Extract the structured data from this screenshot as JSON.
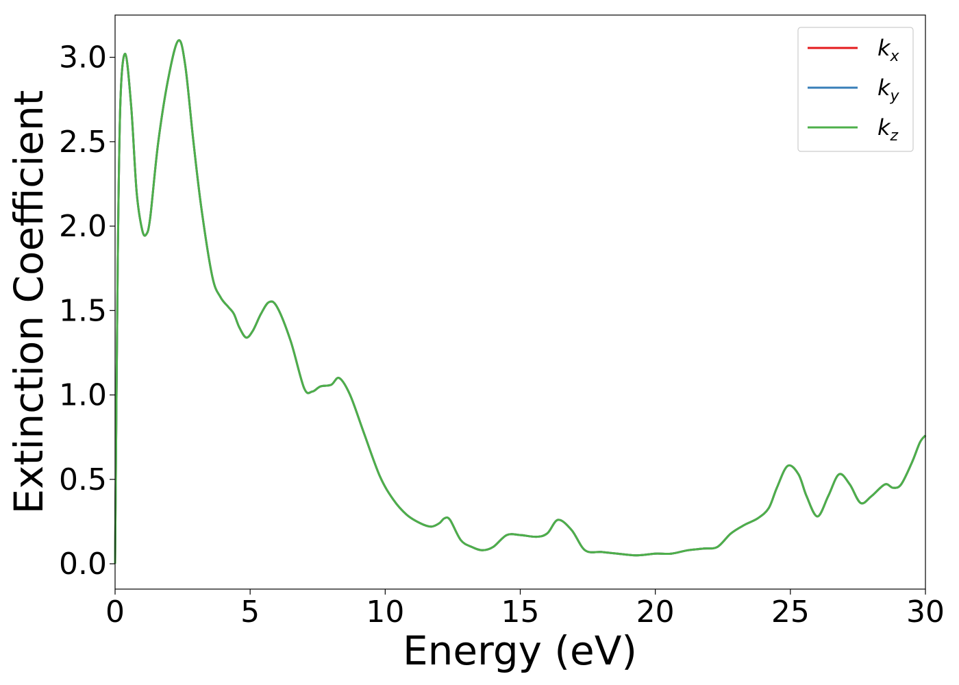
{
  "chart_data": {
    "type": "line",
    "xlabel": "Energy (eV)",
    "ylabel": "Extinction Coefficient",
    "xlim": [
      0,
      30
    ],
    "ylim": [
      -0.15,
      3.25
    ],
    "x_ticks": [
      "0",
      "5",
      "10",
      "15",
      "20",
      "25",
      "30"
    ],
    "y_ticks": [
      "0.0",
      "0.5",
      "1.0",
      "1.5",
      "2.0",
      "2.5",
      "3.0"
    ],
    "grid": false,
    "legend_position": "top-right",
    "series": [
      {
        "name": "k",
        "subscript": "x",
        "color": "#e41a1c"
      },
      {
        "name": "k",
        "subscript": "y",
        "color": "#377eb8"
      },
      {
        "name": "k",
        "subscript": "z",
        "color": "#4daf4a"
      }
    ],
    "x": [
      0,
      0.1,
      0.2,
      0.38,
      0.6,
      0.8,
      1.0,
      1.15,
      1.3,
      1.6,
      2.0,
      2.35,
      2.6,
      2.9,
      3.2,
      3.6,
      3.9,
      4.2,
      4.4,
      4.6,
      4.85,
      5.1,
      5.4,
      5.7,
      6.0,
      6.5,
      7.0,
      7.3,
      7.6,
      8.0,
      8.3,
      8.7,
      9.2,
      9.8,
      10.3,
      10.8,
      11.3,
      11.7,
      12.0,
      12.2,
      12.4,
      12.8,
      13.2,
      13.6,
      14.0,
      14.5,
      15.0,
      15.6,
      16.0,
      16.4,
      16.9,
      17.4,
      18.0,
      18.6,
      19.3,
      20.0,
      20.6,
      21.2,
      21.8,
      22.3,
      22.8,
      23.3,
      23.8,
      24.2,
      24.5,
      24.9,
      25.3,
      25.6,
      26.0,
      26.4,
      26.8,
      27.2,
      27.6,
      28.0,
      28.5,
      28.8,
      29.1,
      29.5,
      29.8,
      30.0
    ],
    "y": [
      0.0,
      1.8,
      2.75,
      3.02,
      2.7,
      2.2,
      1.98,
      1.95,
      2.05,
      2.5,
      2.9,
      3.1,
      2.95,
      2.5,
      2.1,
      1.7,
      1.58,
      1.52,
      1.48,
      1.4,
      1.34,
      1.38,
      1.48,
      1.55,
      1.52,
      1.32,
      1.04,
      1.02,
      1.05,
      1.06,
      1.1,
      1.0,
      0.78,
      0.52,
      0.38,
      0.29,
      0.24,
      0.22,
      0.24,
      0.27,
      0.26,
      0.14,
      0.1,
      0.08,
      0.1,
      0.17,
      0.17,
      0.16,
      0.18,
      0.26,
      0.2,
      0.08,
      0.07,
      0.06,
      0.05,
      0.06,
      0.06,
      0.08,
      0.09,
      0.1,
      0.18,
      0.23,
      0.27,
      0.33,
      0.45,
      0.58,
      0.53,
      0.4,
      0.28,
      0.4,
      0.53,
      0.47,
      0.36,
      0.4,
      0.47,
      0.45,
      0.47,
      0.6,
      0.72,
      0.76
    ]
  }
}
